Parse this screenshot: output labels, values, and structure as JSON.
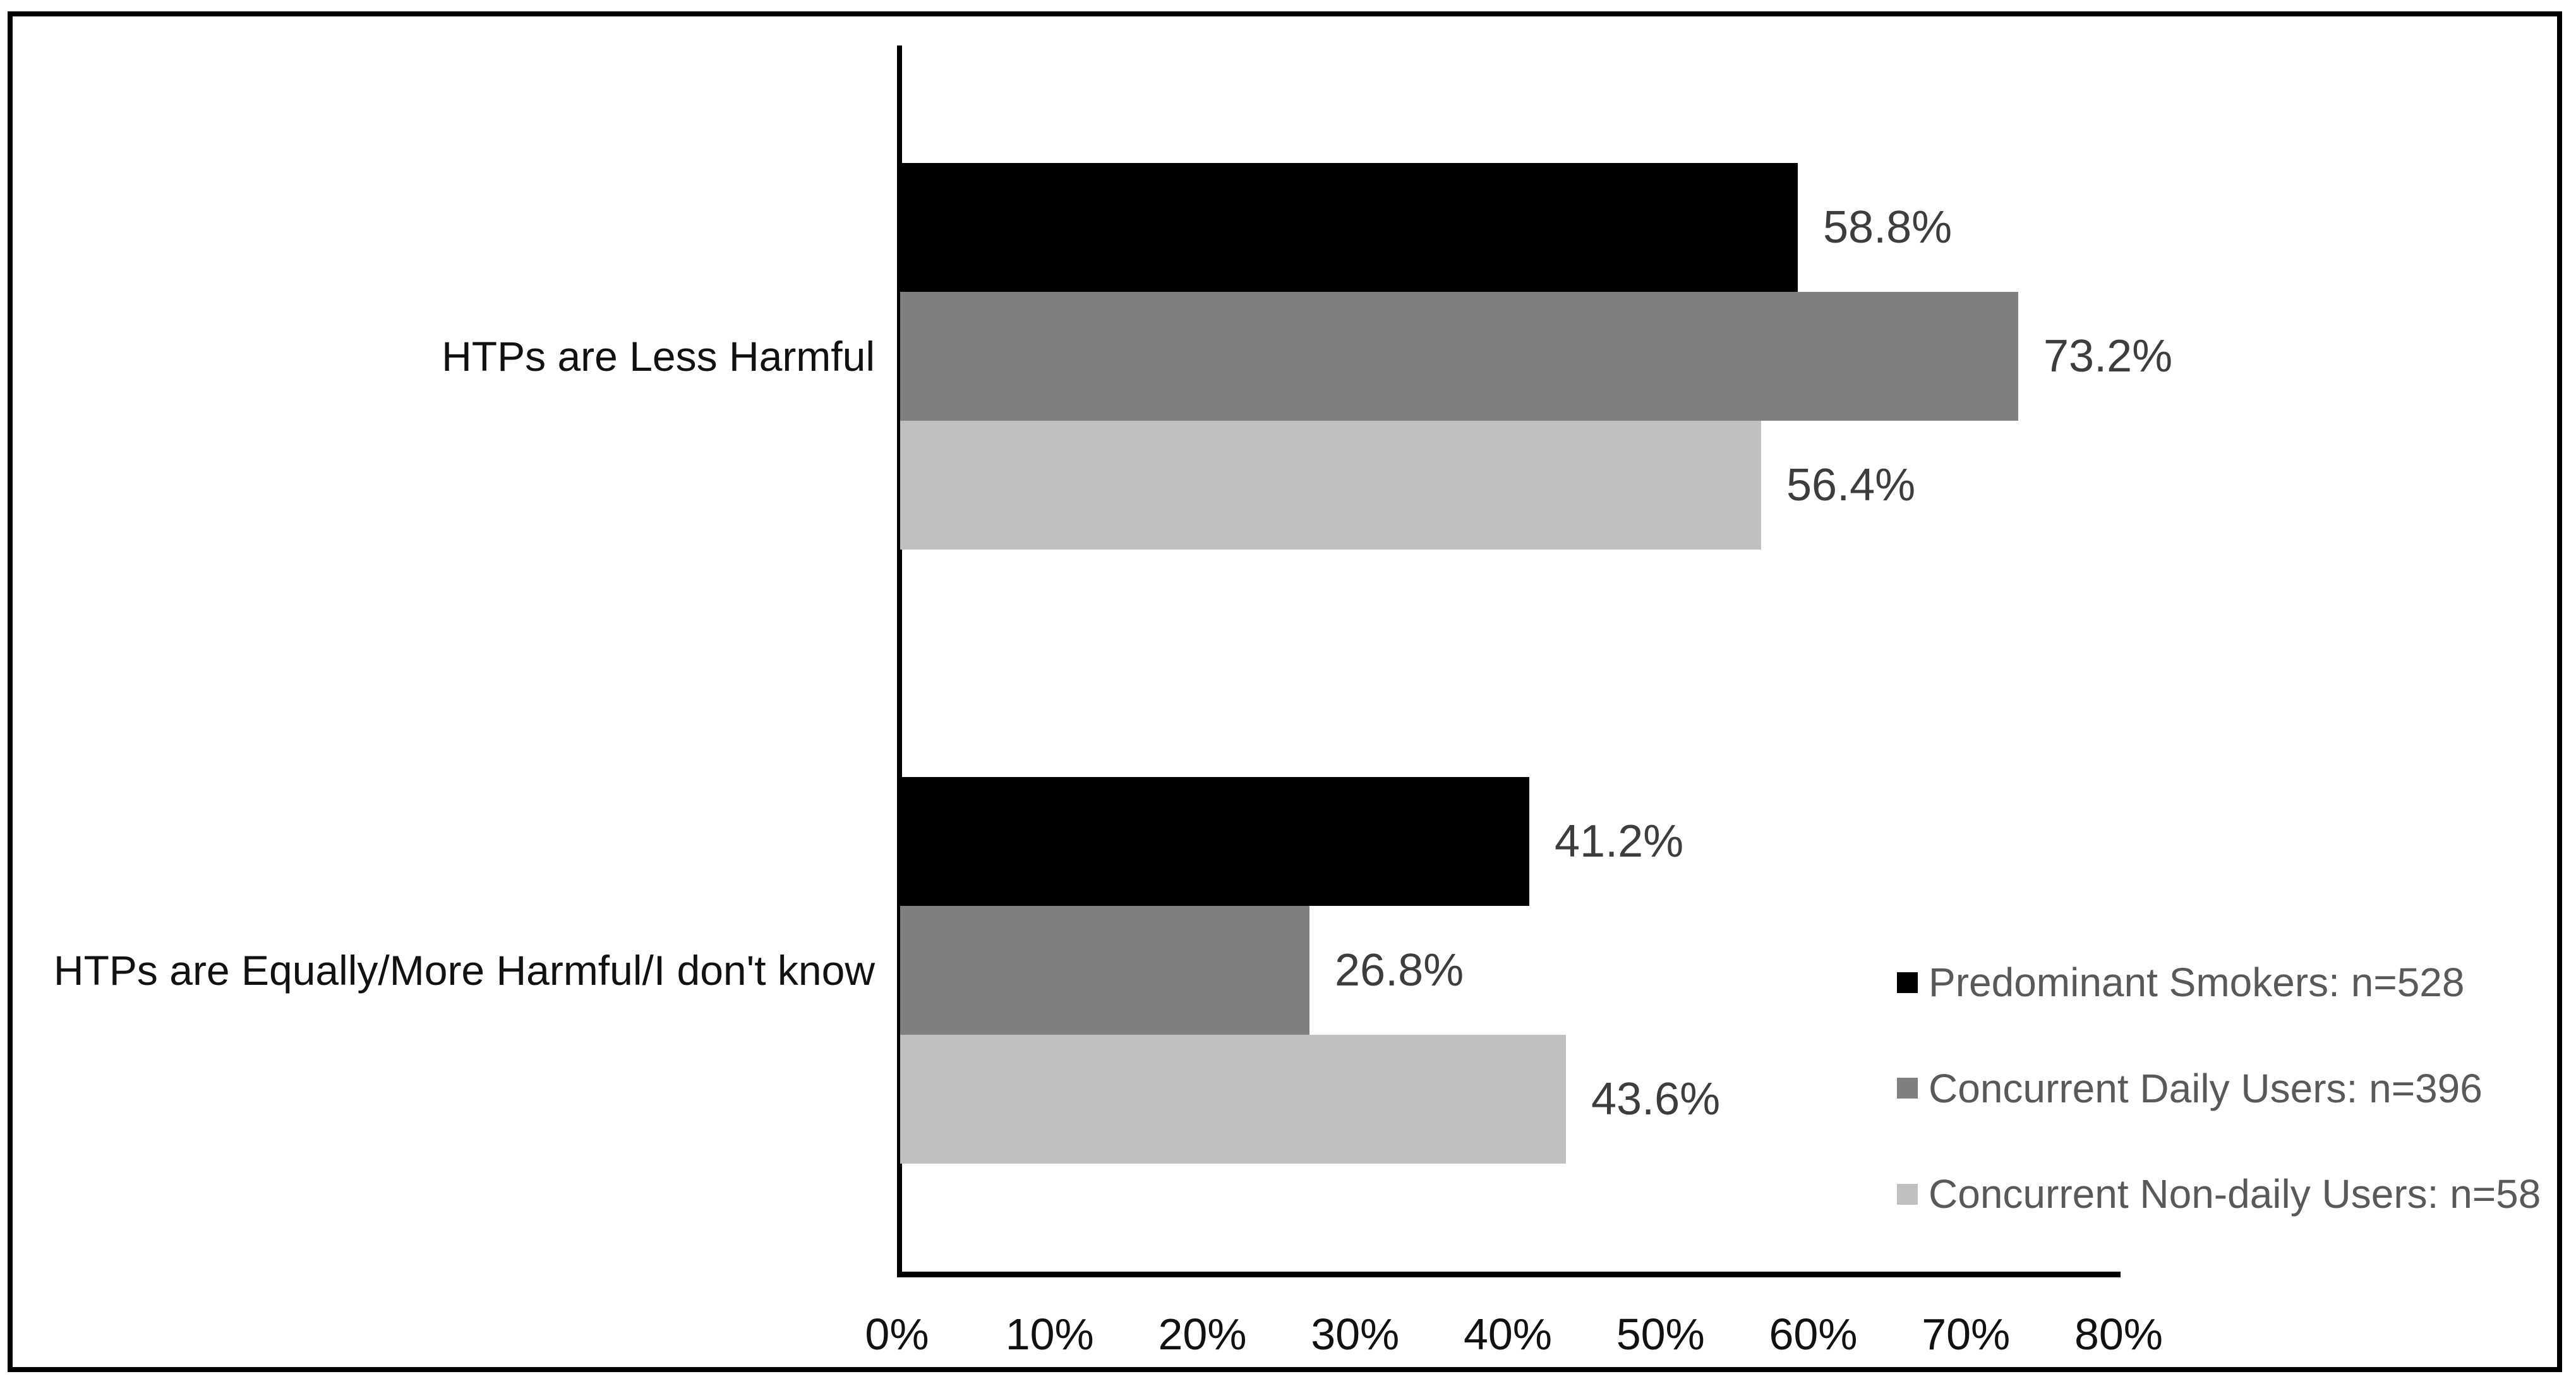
{
  "figure": {
    "background": "#ffffff",
    "border_color": "#000000"
  },
  "chart_data": {
    "type": "bar",
    "orientation": "horizontal",
    "title": "",
    "xlabel": "",
    "ylabel": "",
    "xlim": [
      0,
      80
    ],
    "x_tick_labels": [
      "0%",
      "10%",
      "20%",
      "30%",
      "40%",
      "50%",
      "60%",
      "70%",
      "80%"
    ],
    "grid": false,
    "legend_position": "lower-right",
    "categories": [
      "HTPs are Less Harmful",
      "HTPs are Equally/More Harmful/I don't know"
    ],
    "series": [
      {
        "name": "Predominant Smokers: n=528",
        "color": "#000000",
        "values": [
          58.8,
          41.2
        ],
        "labels": [
          "58.8%",
          "41.2%"
        ]
      },
      {
        "name": "Concurrent Daily Users: n=396",
        "color": "#7f7f7f",
        "values": [
          73.2,
          26.8
        ],
        "labels": [
          "73.2%",
          "26.8%"
        ]
      },
      {
        "name": "Concurrent Non-daily Users: n=58",
        "color": "#bfbfbf",
        "values": [
          56.4,
          43.6
        ],
        "labels": [
          "56.4%",
          "43.6%"
        ]
      }
    ],
    "colors": {
      "data_label": "#3d3d3d",
      "category_label": "#111111",
      "tick_label": "#111111",
      "legend_text": "#595959",
      "axis_line": "#000000"
    }
  }
}
